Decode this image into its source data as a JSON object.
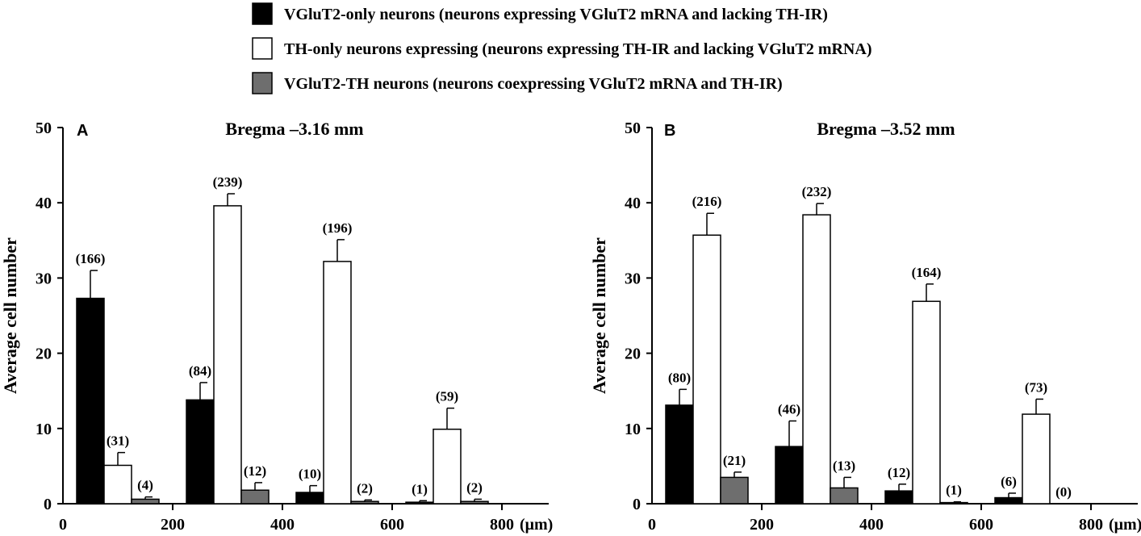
{
  "legend": [
    {
      "label": "VGluT2-only neurons (neurons expressing VGluT2 mRNA and lacking TH-IR)",
      "color": "#000000"
    },
    {
      "label": "TH-only neurons expressing (neurons expressing TH-IR and lacking VGluT2 mRNA)",
      "color": "#ffffff"
    },
    {
      "label": "VGluT2-TH neurons (neurons coexpressing VGluT2 mRNA and TH-IR)",
      "color": "#6e6e6e"
    }
  ],
  "chart_data": [
    {
      "type": "bar",
      "panel": "A",
      "title": "Bregma –3.16 mm",
      "ylabel": "Average cell number",
      "x_unit": "(μm)",
      "x_ticks": [
        "0",
        "200",
        "400",
        "600",
        "800"
      ],
      "ylim": [
        0,
        50
      ],
      "y_ticks": [
        "0",
        "10",
        "20",
        "30",
        "40",
        "50"
      ],
      "groups": [
        {
          "x_center": 100,
          "bars": [
            {
              "series": 0,
              "value": 27.3,
              "error": 3.7,
              "count_label": "(166)"
            },
            {
              "series": 1,
              "value": 5.1,
              "error": 1.7,
              "count_label": "(31)"
            },
            {
              "series": 2,
              "value": 0.6,
              "error": 0.3,
              "count_label": "(4)"
            }
          ]
        },
        {
          "x_center": 300,
          "bars": [
            {
              "series": 0,
              "value": 13.8,
              "error": 2.3,
              "count_label": "(84)"
            },
            {
              "series": 1,
              "value": 39.6,
              "error": 1.6,
              "count_label": "(239)"
            },
            {
              "series": 2,
              "value": 1.8,
              "error": 1.0,
              "count_label": "(12)"
            }
          ]
        },
        {
          "x_center": 500,
          "bars": [
            {
              "series": 0,
              "value": 1.5,
              "error": 0.9,
              "count_label": "(10)"
            },
            {
              "series": 1,
              "value": 32.2,
              "error": 2.9,
              "count_label": "(196)"
            },
            {
              "series": 2,
              "value": 0.3,
              "error": 0.2,
              "count_label": "(2)"
            }
          ]
        },
        {
          "x_center": 700,
          "bars": [
            {
              "series": 0,
              "value": 0.2,
              "error": 0.2,
              "count_label": "(1)"
            },
            {
              "series": 1,
              "value": 9.9,
              "error": 2.8,
              "count_label": "(59)"
            },
            {
              "series": 2,
              "value": 0.3,
              "error": 0.3,
              "count_label": "(2)"
            }
          ]
        }
      ]
    },
    {
      "type": "bar",
      "panel": "B",
      "title": "Bregma –3.52 mm",
      "ylabel": "Average cell number",
      "x_unit": "(μm)",
      "x_ticks": [
        "0",
        "200",
        "400",
        "600",
        "800"
      ],
      "ylim": [
        0,
        50
      ],
      "y_ticks": [
        "0",
        "10",
        "20",
        "30",
        "40",
        "50"
      ],
      "groups": [
        {
          "x_center": 100,
          "bars": [
            {
              "series": 0,
              "value": 13.1,
              "error": 2.1,
              "count_label": "(80)"
            },
            {
              "series": 1,
              "value": 35.7,
              "error": 2.9,
              "count_label": "(216)"
            },
            {
              "series": 2,
              "value": 3.5,
              "error": 0.7,
              "count_label": "(21)"
            }
          ]
        },
        {
          "x_center": 300,
          "bars": [
            {
              "series": 0,
              "value": 7.6,
              "error": 3.4,
              "count_label": "(46)"
            },
            {
              "series": 1,
              "value": 38.4,
              "error": 1.5,
              "count_label": "(232)"
            },
            {
              "series": 2,
              "value": 2.1,
              "error": 1.4,
              "count_label": "(13)"
            }
          ]
        },
        {
          "x_center": 500,
          "bars": [
            {
              "series": 0,
              "value": 1.7,
              "error": 0.9,
              "count_label": "(12)"
            },
            {
              "series": 1,
              "value": 26.9,
              "error": 2.3,
              "count_label": "(164)"
            },
            {
              "series": 2,
              "value": 0.15,
              "error": 0.1,
              "count_label": "(1)"
            }
          ]
        },
        {
          "x_center": 700,
          "bars": [
            {
              "series": 0,
              "value": 0.8,
              "error": 0.6,
              "count_label": "(6)"
            },
            {
              "series": 1,
              "value": 11.9,
              "error": 2.0,
              "count_label": "(73)"
            },
            {
              "series": 2,
              "value": 0.0,
              "error": 0.0,
              "count_label": "(0)"
            }
          ]
        }
      ]
    }
  ]
}
